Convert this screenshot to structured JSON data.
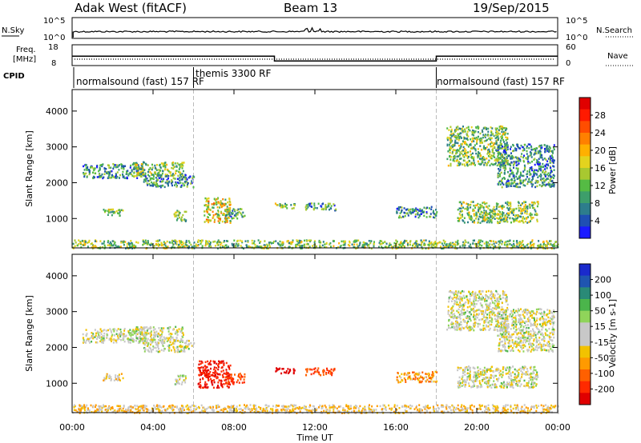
{
  "header": {
    "title": "Adak West (fitACF)",
    "beam": "Beam 13",
    "date": "19/Sep/2015"
  },
  "top_panel": {
    "left_label": "N.Sky",
    "left_ticks": [
      "10^5",
      "10^0"
    ],
    "right_ticks": [
      "10^5",
      "10^0"
    ],
    "right_label": "N.Search"
  },
  "freq_panel": {
    "left_label_line1": "Freq.",
    "left_label_line2": "[MHz]",
    "left_ticks": [
      "18",
      "8"
    ],
    "right_ticks": [
      "60",
      "0"
    ],
    "right_label": "Nave"
  },
  "cpid": {
    "label": "CPID",
    "modes": [
      {
        "text": "normalsound (fast) 157 RF"
      },
      {
        "text": "themis 3300 RF"
      },
      {
        "text": "normalsound (fast) 157 RF"
      }
    ]
  },
  "axes": {
    "ylabel": "Slant Range [km]",
    "xlabel": "Time UT",
    "y_ticks": [
      "1000",
      "2000",
      "3000",
      "4000"
    ],
    "x_ticks": [
      "00:00",
      "04:00",
      "08:00",
      "12:00",
      "16:00",
      "20:00",
      "00:00"
    ]
  },
  "power_colorbar": {
    "label": "Power [dB]",
    "ticks": [
      "4",
      "8",
      "12",
      "16",
      "20",
      "24",
      "28"
    ],
    "colors": [
      "#1a1aff",
      "#1f4fb3",
      "#2d7d8c",
      "#3d9e6b",
      "#55bb44",
      "#a8c830",
      "#e3d31e",
      "#ffb000",
      "#ff8000",
      "#ff4d00",
      "#ff1a00",
      "#e00000"
    ]
  },
  "velocity_colorbar": {
    "label": "Velocity [m s-1]",
    "label_unit_sup": "-1",
    "ticks": [
      "200",
      "100",
      "50",
      "15",
      "-15",
      "-50",
      "-100",
      "-200"
    ],
    "colors": [
      "#1a2acc",
      "#1f55b0",
      "#2a8a77",
      "#4bb54b",
      "#90d45a",
      "#c8c8c8",
      "#c8c8c8",
      "#f2c200",
      "#ff9a00",
      "#ff6000",
      "#ff2a00",
      "#e00000"
    ]
  },
  "chart_data": {
    "type": "heatmap",
    "x_range_hours": [
      0,
      24
    ],
    "y_range_km": [
      180,
      4600
    ],
    "x_ticks_hours": [
      0,
      4,
      8,
      12,
      16,
      20,
      24
    ],
    "y_ticks_km": [
      1000,
      2000,
      3000,
      4000
    ],
    "mode_change_hours": [
      6,
      18
    ],
    "freq_mhz": [
      {
        "start": 0,
        "end": 10,
        "value": 12.5
      },
      {
        "start": 10,
        "end": 18,
        "value": 10.2
      },
      {
        "start": 18,
        "end": 24,
        "value": 12.5
      }
    ],
    "power_scatter_regions": [
      {
        "t0": 0.5,
        "t1": 3.5,
        "r0": 2150,
        "r1": 2550,
        "value": 8
      },
      {
        "t0": 3.0,
        "t1": 5.5,
        "r0": 2200,
        "r1": 2600,
        "value": 12
      },
      {
        "t0": 3.5,
        "t1": 6.0,
        "r0": 1900,
        "r1": 2250,
        "value": 8
      },
      {
        "t0": 1.5,
        "t1": 2.5,
        "r0": 1100,
        "r1": 1300,
        "value": 12
      },
      {
        "t0": 5.0,
        "t1": 5.6,
        "r0": 950,
        "r1": 1250,
        "value": 12
      },
      {
        "t0": 6.5,
        "t1": 7.8,
        "r0": 900,
        "r1": 1600,
        "value": 16
      },
      {
        "t0": 7.5,
        "t1": 8.5,
        "r0": 1000,
        "r1": 1300,
        "value": 8
      },
      {
        "t0": 10.0,
        "t1": 11.0,
        "r0": 1300,
        "r1": 1450,
        "value": 12
      },
      {
        "t0": 11.5,
        "t1": 13.0,
        "r0": 1250,
        "r1": 1450,
        "value": 8
      },
      {
        "t0": 16.0,
        "t1": 18.0,
        "r0": 1050,
        "r1": 1350,
        "value": 8
      },
      {
        "t0": 18.5,
        "t1": 21.5,
        "r0": 2500,
        "r1": 3600,
        "value": 12
      },
      {
        "t0": 21.0,
        "t1": 23.8,
        "r0": 1900,
        "r1": 3100,
        "value": 8
      },
      {
        "t0": 19.0,
        "t1": 23.0,
        "r0": 900,
        "r1": 1500,
        "value": 12
      },
      {
        "t0": 0.0,
        "t1": 24.0,
        "r0": 190,
        "r1": 420,
        "value": 12
      }
    ],
    "velocity_scatter_regions": [
      {
        "t0": 0.5,
        "t1": 3.5,
        "r0": 2150,
        "r1": 2550,
        "value": 0
      },
      {
        "t0": 3.0,
        "t1": 5.5,
        "r0": 2200,
        "r1": 2600,
        "value": 0
      },
      {
        "t0": 3.5,
        "t1": 6.0,
        "r0": 1900,
        "r1": 2250,
        "value": 0
      },
      {
        "t0": 1.5,
        "t1": 2.5,
        "r0": 1100,
        "r1": 1300,
        "value": -20
      },
      {
        "t0": 5.0,
        "t1": 5.6,
        "r0": 950,
        "r1": 1250,
        "value": 0
      },
      {
        "t0": 6.2,
        "t1": 7.8,
        "r0": 900,
        "r1": 1650,
        "value": -150
      },
      {
        "t0": 7.5,
        "t1": 8.5,
        "r0": 1000,
        "r1": 1300,
        "value": -100
      },
      {
        "t0": 10.0,
        "t1": 11.0,
        "r0": 1300,
        "r1": 1450,
        "value": -200
      },
      {
        "t0": 11.5,
        "t1": 13.0,
        "r0": 1250,
        "r1": 1450,
        "value": -100
      },
      {
        "t0": 16.0,
        "t1": 18.0,
        "r0": 1050,
        "r1": 1350,
        "value": -40
      },
      {
        "t0": 18.5,
        "t1": 21.5,
        "r0": 2500,
        "r1": 3600,
        "value": 0
      },
      {
        "t0": 21.0,
        "t1": 23.8,
        "r0": 1900,
        "r1": 3100,
        "value": 0
      },
      {
        "t0": 19.0,
        "t1": 23.0,
        "r0": 900,
        "r1": 1500,
        "value": 0
      },
      {
        "t0": 0.0,
        "t1": 24.0,
        "r0": 190,
        "r1": 420,
        "value": -20
      }
    ]
  }
}
